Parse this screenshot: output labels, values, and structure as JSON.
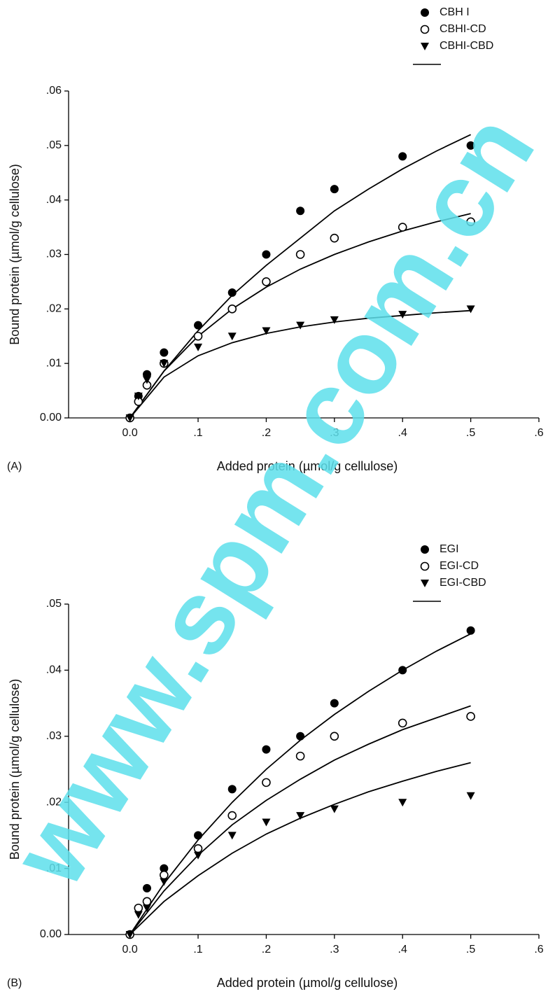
{
  "watermark": "www.spm.com.cn",
  "chart_data": [
    {
      "type": "scatter",
      "annotation": "(A)",
      "x_label": "Added protein (µmol/g cellulose)",
      "y_label": "Bound protein (µmol/g cellulose)",
      "xlim": [
        -0.09,
        0.6
      ],
      "ylim": [
        0,
        0.06
      ],
      "xticks": [
        {
          "value": 0,
          "label": "0.0"
        },
        {
          "value": 0.1,
          "label": ".1"
        },
        {
          "value": 0.2,
          "label": ".2"
        },
        {
          "value": 0.3,
          "label": ".3"
        },
        {
          "value": 0.4,
          "label": ".4"
        },
        {
          "value": 0.5,
          "label": ".5"
        },
        {
          "value": 0.6,
          "label": ".6"
        }
      ],
      "yticks": [
        {
          "value": 0,
          "label": "0.00"
        },
        {
          "value": 0.01,
          "label": ".01"
        },
        {
          "value": 0.02,
          "label": ".02"
        },
        {
          "value": 0.03,
          "label": ".03"
        },
        {
          "value": 0.04,
          "label": ".04"
        },
        {
          "value": 0.05,
          "label": ".05"
        },
        {
          "value": 0.06,
          "label": ".06"
        }
      ],
      "legend": "top-right",
      "series": [
        {
          "name": "CBH I",
          "color": "#000000",
          "marker": "circle",
          "x": [
            0,
            0.0125,
            0.025,
            0.05,
            0.1,
            0.15,
            0.2,
            0.25,
            0.3,
            0.4,
            0.5
          ],
          "values": [
            0,
            0.004,
            0.008,
            0.012,
            0.017,
            0.023,
            0.03,
            0.038,
            0.042,
            0.048,
            0.05
          ]
        },
        {
          "name": "CBHI-CD",
          "color": "#000000",
          "marker": "open-circle",
          "x": [
            0,
            0.0125,
            0.025,
            0.05,
            0.1,
            0.15,
            0.2,
            0.25,
            0.3,
            0.4,
            0.5
          ],
          "values": [
            0,
            0.003,
            0.006,
            0.01,
            0.015,
            0.02,
            0.025,
            0.03,
            0.033,
            0.035,
            0.036
          ]
        },
        {
          "name": "CBHI-CBD",
          "color": "#000000",
          "marker": "triangle-down",
          "x": [
            0,
            0.0125,
            0.025,
            0.05,
            0.1,
            0.15,
            0.2,
            0.25,
            0.3,
            0.4,
            0.5
          ],
          "values": [
            0,
            0.004,
            0.007,
            0.01,
            0.013,
            0.015,
            0.016,
            0.017,
            0.018,
            0.019,
            0.02
          ]
        }
      ],
      "fits": [
        {
          "color": "#000000",
          "x": [
            0,
            0.05,
            0.1,
            0.15,
            0.2,
            0.25,
            0.3,
            0.35,
            0.4,
            0.45,
            0.5
          ],
          "values": [
            0,
            0.0086,
            0.016,
            0.0225,
            0.028,
            0.033,
            0.038,
            0.042,
            0.0457,
            0.049,
            0.052
          ]
        },
        {
          "color": "#000000",
          "x": [
            0,
            0.05,
            0.1,
            0.15,
            0.2,
            0.25,
            0.3,
            0.35,
            0.4,
            0.45,
            0.5
          ],
          "values": [
            0,
            0.0086,
            0.015,
            0.02,
            0.024,
            0.0273,
            0.03,
            0.0323,
            0.0343,
            0.036,
            0.0375
          ]
        },
        {
          "color": "#000000",
          "x": [
            0,
            0.05,
            0.1,
            0.15,
            0.2,
            0.25,
            0.3,
            0.35,
            0.4,
            0.45,
            0.5
          ],
          "values": [
            0,
            0.0075,
            0.0114,
            0.0138,
            0.0155,
            0.0167,
            0.0176,
            0.0183,
            0.0188,
            0.0193,
            0.0197
          ]
        }
      ]
    },
    {
      "type": "scatter",
      "annotation": "(B)",
      "x_label": "Added protein (µmol/g cellulose)",
      "y_label": "Bound protein (µmol/g cellulose)",
      "xlim": [
        -0.09,
        0.6
      ],
      "ylim": [
        0,
        0.05
      ],
      "xticks": [
        {
          "value": 0,
          "label": "0.0"
        },
        {
          "value": 0.1,
          "label": ".1"
        },
        {
          "value": 0.2,
          "label": ".2"
        },
        {
          "value": 0.3,
          "label": ".3"
        },
        {
          "value": 0.4,
          "label": ".4"
        },
        {
          "value": 0.5,
          "label": ".5"
        },
        {
          "value": 0.6,
          "label": ".6"
        }
      ],
      "yticks": [
        {
          "value": 0,
          "label": "0.00"
        },
        {
          "value": 0.01,
          "label": ".01"
        },
        {
          "value": 0.02,
          "label": ".02"
        },
        {
          "value": 0.03,
          "label": ".03"
        },
        {
          "value": 0.04,
          "label": ".04"
        },
        {
          "value": 0.05,
          "label": ".05"
        }
      ],
      "legend": "top-right",
      "series": [
        {
          "name": "EGI",
          "color": "#000000",
          "marker": "circle",
          "x": [
            0,
            0.0125,
            0.025,
            0.05,
            0.1,
            0.15,
            0.2,
            0.25,
            0.3,
            0.4,
            0.5
          ],
          "values": [
            0,
            0.004,
            0.007,
            0.01,
            0.015,
            0.022,
            0.028,
            0.03,
            0.035,
            0.04,
            0.046
          ]
        },
        {
          "name": "EGI-CD",
          "color": "#000000",
          "marker": "open-circle",
          "x": [
            0,
            0.0125,
            0.025,
            0.05,
            0.1,
            0.15,
            0.2,
            0.25,
            0.3,
            0.4,
            0.5
          ],
          "values": [
            0,
            0.004,
            0.005,
            0.009,
            0.013,
            0.018,
            0.023,
            0.027,
            0.03,
            0.032,
            0.033
          ]
        },
        {
          "name": "EGI-CBD",
          "color": "#000000",
          "marker": "triangle-down",
          "x": [
            0,
            0.0125,
            0.025,
            0.05,
            0.1,
            0.15,
            0.2,
            0.25,
            0.3,
            0.4,
            0.5
          ],
          "values": [
            0,
            0.003,
            0.004,
            0.008,
            0.012,
            0.015,
            0.017,
            0.018,
            0.019,
            0.02,
            0.021
          ]
        }
      ],
      "fits": [
        {
          "color": "#000000",
          "x": [
            0,
            0.05,
            0.1,
            0.15,
            0.2,
            0.25,
            0.3,
            0.35,
            0.4,
            0.45,
            0.5
          ],
          "values": [
            0,
            0.0077,
            0.0143,
            0.02,
            0.025,
            0.0294,
            0.0333,
            0.0368,
            0.04,
            0.0429,
            0.0455
          ]
        },
        {
          "color": "#000000",
          "x": [
            0,
            0.05,
            0.1,
            0.15,
            0.2,
            0.25,
            0.3,
            0.35,
            0.4,
            0.45,
            0.5
          ],
          "values": [
            0,
            0.0066,
            0.012,
            0.0166,
            0.0203,
            0.0235,
            0.0264,
            0.0288,
            0.031,
            0.0328,
            0.0346
          ]
        },
        {
          "color": "#000000",
          "x": [
            0,
            0.05,
            0.1,
            0.15,
            0.2,
            0.25,
            0.3,
            0.35,
            0.4,
            0.45,
            0.5
          ],
          "values": [
            0,
            0.005,
            0.0089,
            0.0123,
            0.0152,
            0.0176,
            0.0197,
            0.0216,
            0.0232,
            0.0247,
            0.026
          ]
        }
      ]
    }
  ]
}
